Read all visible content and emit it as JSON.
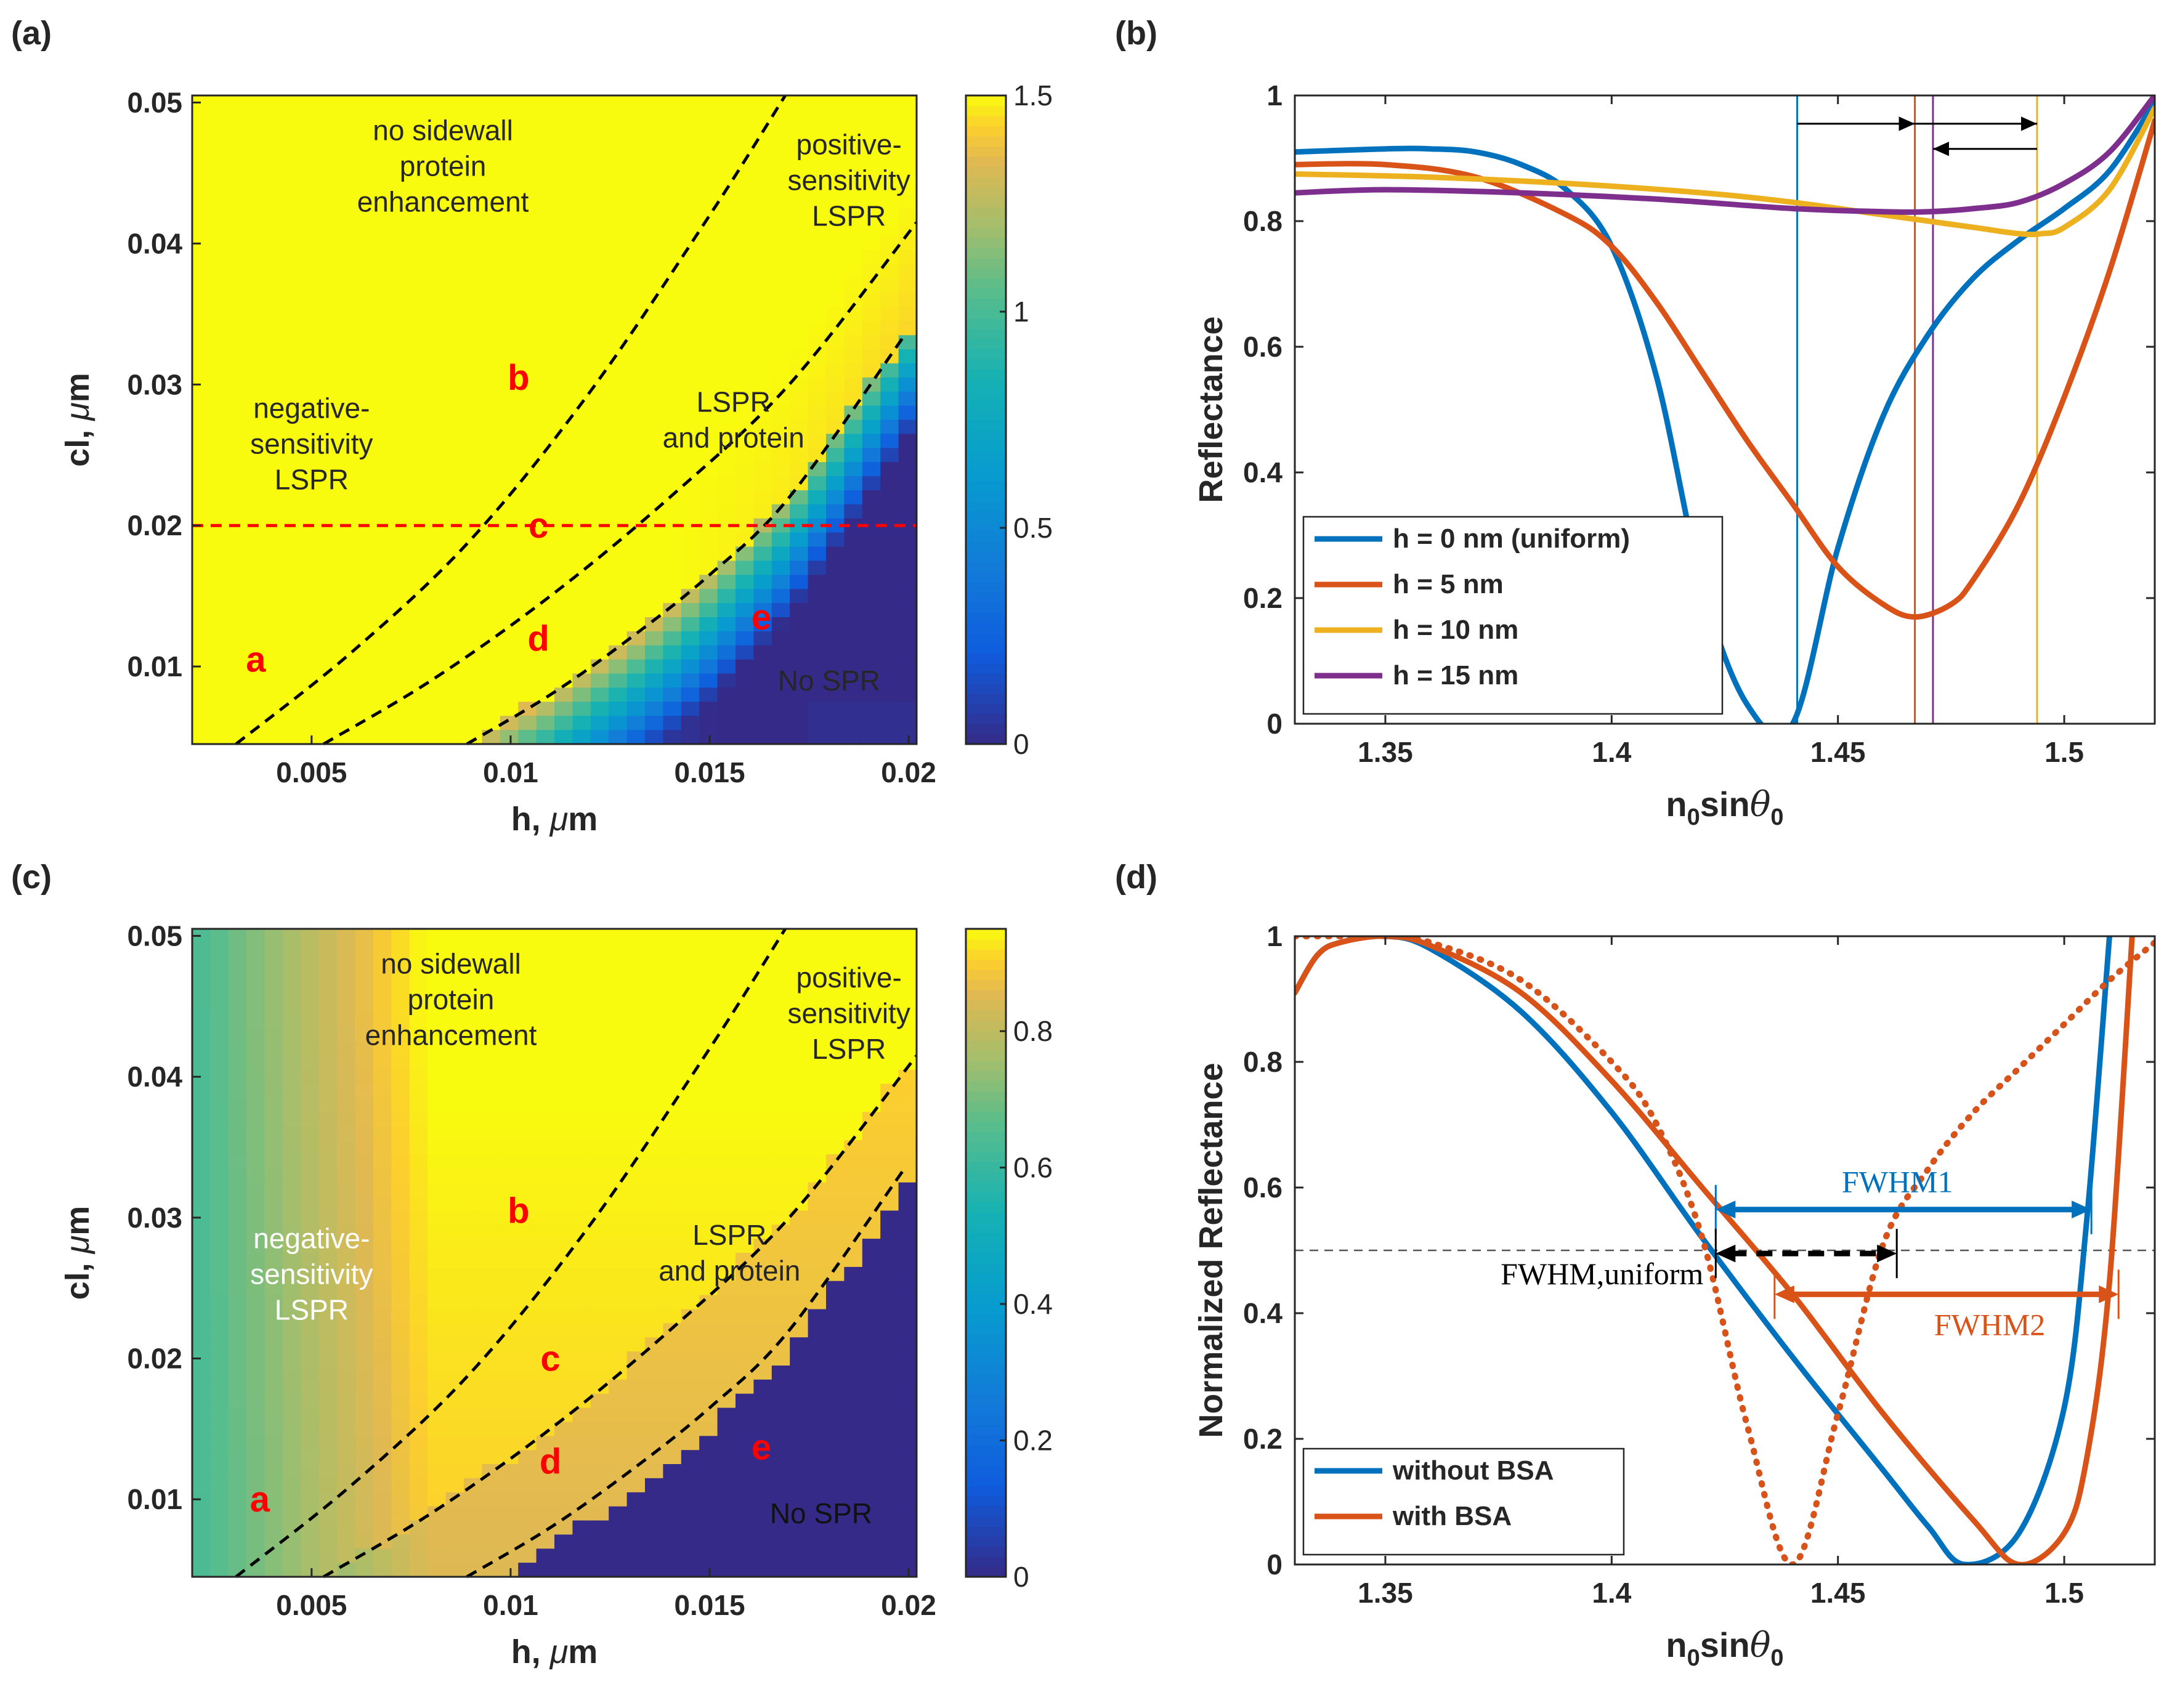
{
  "panels": {
    "a": {
      "label": "(a)"
    },
    "b": {
      "label": "(b)"
    },
    "c": {
      "label": "(c)"
    },
    "d": {
      "label": "(d)"
    }
  },
  "chart_data": [
    {
      "id": "a",
      "type": "heatmap",
      "xlabel": "h, μm",
      "ylabel": "cl, μm",
      "xlim": [
        0.002,
        0.0202
      ],
      "ylim": [
        0.0045,
        0.0505
      ],
      "xticks": [
        "0.005",
        "0.01",
        "0.015",
        "0.02"
      ],
      "xtick_values": [
        0.005,
        0.01,
        0.015,
        0.02
      ],
      "yticks": [
        "0.01",
        "0.02",
        "0.03",
        "0.04",
        "0.05"
      ],
      "ytick_values": [
        0.01,
        0.02,
        0.03,
        0.04,
        0.05
      ],
      "colorbar": {
        "ticks": [
          "0",
          "0.5",
          "1",
          "1.5"
        ],
        "tick_values": [
          0,
          0.5,
          1,
          1.5
        ],
        "range": [
          0,
          1.5
        ],
        "colormap": "parula"
      },
      "region_labels": [
        {
          "text": "a",
          "h": 0.0036,
          "cl": 0.0105,
          "color": "#ff0000"
        },
        {
          "text": "b",
          "h": 0.0102,
          "cl": 0.0305,
          "color": "#ff0000"
        },
        {
          "text": "c",
          "h": 0.0107,
          "cl": 0.02,
          "color": "#ff0000"
        },
        {
          "text": "d",
          "h": 0.0107,
          "cl": 0.012,
          "color": "#ff0000"
        },
        {
          "text": "e",
          "h": 0.0163,
          "cl": 0.0135,
          "color": "#ff0000"
        }
      ],
      "annotations": [
        {
          "lines": [
            "no sidewall",
            "protein",
            "enhancement"
          ],
          "h": 0.0083,
          "cl": 0.0455
        },
        {
          "lines": [
            "positive-",
            "sensitivity",
            "LSPR"
          ],
          "h": 0.0185,
          "cl": 0.0445
        },
        {
          "lines": [
            "negative-",
            "sensitivity",
            "LSPR"
          ],
          "h": 0.005,
          "cl": 0.0258
        },
        {
          "lines": [
            "LSPR",
            "and protein"
          ],
          "h": 0.0156,
          "cl": 0.0275
        },
        {
          "lines": [
            "No SPR"
          ],
          "h": 0.018,
          "cl": 0.009
        }
      ],
      "boundary_curves": [
        {
          "style": "dashed",
          "color": "#000000",
          "points": [
            [
              0.0031,
              0.0045
            ],
            [
              0.006,
              0.011
            ],
            [
              0.009,
              0.019
            ],
            [
              0.012,
              0.0295
            ],
            [
              0.015,
              0.042
            ],
            [
              0.0169,
              0.0505
            ]
          ]
        },
        {
          "style": "dashed",
          "color": "#000000",
          "points": [
            [
              0.0053,
              0.0045
            ],
            [
              0.008,
              0.009
            ],
            [
              0.011,
              0.015
            ],
            [
              0.014,
              0.022
            ],
            [
              0.017,
              0.03
            ],
            [
              0.0202,
              0.0415
            ]
          ]
        },
        {
          "style": "dashed",
          "color": "#000000",
          "points": [
            [
              0.0089,
              0.0045
            ],
            [
              0.011,
              0.008
            ],
            [
              0.013,
              0.012
            ],
            [
              0.015,
              0.0165
            ],
            [
              0.017,
              0.022
            ],
            [
              0.0199,
              0.0335
            ]
          ]
        },
        {
          "style": "dashed",
          "color": "#ff0000",
          "points": [
            [
              0.002,
              0.02
            ],
            [
              0.0202,
              0.02
            ]
          ]
        }
      ]
    },
    {
      "id": "b",
      "type": "line",
      "xlabel": "n0sinθ0",
      "ylabel": "Reflectance",
      "xlim": [
        1.33,
        1.52
      ],
      "ylim": [
        0,
        1
      ],
      "xticks": [
        "1.35",
        "1.4",
        "1.45",
        "1.5"
      ],
      "xtick_values": [
        1.35,
        1.4,
        1.45,
        1.5
      ],
      "yticks": [
        "0",
        "0.2",
        "0.4",
        "0.6",
        "0.8",
        "1"
      ],
      "ytick_values": [
        0,
        0.2,
        0.4,
        0.6,
        0.8,
        1
      ],
      "legend_position": "bottom-left",
      "series": [
        {
          "name": "h = 0 nm (uniform)",
          "color": "#0072bd",
          "style": "solid",
          "x": [
            1.33,
            1.35,
            1.36,
            1.37,
            1.38,
            1.39,
            1.4,
            1.41,
            1.42,
            1.43,
            1.44,
            1.45,
            1.46,
            1.47,
            1.48,
            1.49,
            1.5,
            1.51,
            1.52
          ],
          "y": [
            0.91,
            0.915,
            0.915,
            0.91,
            0.89,
            0.85,
            0.76,
            0.55,
            0.22,
            0.03,
            0.0,
            0.28,
            0.49,
            0.62,
            0.71,
            0.77,
            0.82,
            0.88,
            0.99
          ]
        },
        {
          "name": "h = 5 nm",
          "color": "#d95319",
          "style": "solid",
          "x": [
            1.33,
            1.35,
            1.37,
            1.39,
            1.4,
            1.41,
            1.42,
            1.43,
            1.44,
            1.45,
            1.46,
            1.467,
            1.475,
            1.48,
            1.49,
            1.5,
            1.51,
            1.52
          ],
          "y": [
            0.89,
            0.89,
            0.87,
            0.81,
            0.76,
            0.67,
            0.56,
            0.45,
            0.35,
            0.25,
            0.19,
            0.17,
            0.19,
            0.23,
            0.35,
            0.52,
            0.72,
            0.96
          ]
        },
        {
          "name": "h = 10 nm",
          "color": "#edb120",
          "style": "solid",
          "x": [
            1.33,
            1.36,
            1.39,
            1.42,
            1.44,
            1.46,
            1.48,
            1.49,
            1.495,
            1.5,
            1.51,
            1.52
          ],
          "y": [
            0.875,
            0.87,
            0.86,
            0.845,
            0.83,
            0.81,
            0.79,
            0.78,
            0.78,
            0.79,
            0.85,
            0.98
          ]
        },
        {
          "name": "h = 15 nm",
          "color": "#7e2f8e",
          "style": "solid",
          "x": [
            1.33,
            1.35,
            1.38,
            1.41,
            1.44,
            1.46,
            1.47,
            1.48,
            1.49,
            1.5,
            1.51,
            1.52
          ],
          "y": [
            0.845,
            0.85,
            0.845,
            0.835,
            0.82,
            0.815,
            0.815,
            0.82,
            0.83,
            0.86,
            0.91,
            1.0
          ]
        }
      ],
      "vertical_lines": [
        {
          "x": 1.441,
          "color": "#0072bd"
        },
        {
          "x": 1.467,
          "color": "#d95319"
        },
        {
          "x": 1.471,
          "color": "#7e2f8e"
        },
        {
          "x": 1.494,
          "color": "#edb120"
        }
      ],
      "arrows": [
        {
          "from": [
            1.441,
            0.955
          ],
          "to": [
            1.467,
            0.955
          ]
        },
        {
          "from": [
            1.467,
            0.955
          ],
          "to": [
            1.494,
            0.955
          ]
        },
        {
          "from": [
            1.494,
            0.915
          ],
          "to": [
            1.471,
            0.915
          ]
        }
      ]
    },
    {
      "id": "c",
      "type": "heatmap",
      "xlabel": "h, μm",
      "ylabel": "cl, μm",
      "xlim": [
        0.002,
        0.0202
      ],
      "ylim": [
        0.0045,
        0.0505
      ],
      "xticks": [
        "0.005",
        "0.01",
        "0.015",
        "0.02"
      ],
      "xtick_values": [
        0.005,
        0.01,
        0.015,
        0.02
      ],
      "yticks": [
        "0.01",
        "0.02",
        "0.03",
        "0.04",
        "0.05"
      ],
      "ytick_values": [
        0.01,
        0.02,
        0.03,
        0.04,
        0.05
      ],
      "colorbar": {
        "ticks": [
          "0",
          "0.2",
          "0.4",
          "0.6",
          "0.8"
        ],
        "tick_values": [
          0,
          0.2,
          0.4,
          0.6,
          0.8
        ],
        "range": [
          0,
          0.95
        ],
        "colormap": "parula"
      },
      "region_labels": [
        {
          "text": "a",
          "h": 0.0037,
          "cl": 0.01,
          "color": "#ff0000"
        },
        {
          "text": "b",
          "h": 0.0102,
          "cl": 0.0305,
          "color": "#ff0000"
        },
        {
          "text": "c",
          "h": 0.011,
          "cl": 0.02,
          "color": "#ff0000"
        },
        {
          "text": "d",
          "h": 0.011,
          "cl": 0.0127,
          "color": "#ff0000"
        },
        {
          "text": "e",
          "h": 0.0163,
          "cl": 0.0137,
          "color": "#ff0000"
        }
      ],
      "annotations": [
        {
          "lines": [
            "no sidewall",
            "protein",
            "enhancement"
          ],
          "h": 0.0085,
          "cl": 0.0455,
          "color": "#262626"
        },
        {
          "lines": [
            "positive-",
            "sensitivity",
            "LSPR"
          ],
          "h": 0.0185,
          "cl": 0.0445,
          "color": "#262626"
        },
        {
          "lines": [
            "negative-",
            "sensitivity",
            "LSPR"
          ],
          "h": 0.005,
          "cl": 0.026,
          "color": "#ffffff"
        },
        {
          "lines": [
            "LSPR",
            "and protein"
          ],
          "h": 0.0155,
          "cl": 0.0275,
          "color": "#262626"
        },
        {
          "lines": [
            "No SPR"
          ],
          "h": 0.0178,
          "cl": 0.009,
          "color": "#111111"
        }
      ],
      "boundary_curves": [
        {
          "style": "dashed",
          "color": "#000000",
          "points": [
            [
              0.0031,
              0.0045
            ],
            [
              0.006,
              0.011
            ],
            [
              0.009,
              0.019
            ],
            [
              0.012,
              0.0295
            ],
            [
              0.015,
              0.042
            ],
            [
              0.0169,
              0.0505
            ]
          ]
        },
        {
          "style": "dashed",
          "color": "#000000",
          "points": [
            [
              0.0053,
              0.0045
            ],
            [
              0.008,
              0.009
            ],
            [
              0.011,
              0.015
            ],
            [
              0.014,
              0.022
            ],
            [
              0.017,
              0.03
            ],
            [
              0.0202,
              0.0415
            ]
          ]
        },
        {
          "style": "dashed",
          "color": "#000000",
          "points": [
            [
              0.0089,
              0.0045
            ],
            [
              0.011,
              0.008
            ],
            [
              0.013,
              0.012
            ],
            [
              0.015,
              0.0165
            ],
            [
              0.017,
              0.022
            ],
            [
              0.0199,
              0.0335
            ]
          ]
        }
      ]
    },
    {
      "id": "d",
      "type": "line",
      "xlabel": "n0sinθ0",
      "ylabel": "Normalized Reflectance",
      "xlim": [
        1.33,
        1.52
      ],
      "ylim": [
        0,
        1
      ],
      "xticks": [
        "1.35",
        "1.4",
        "1.45",
        "1.5"
      ],
      "xtick_values": [
        1.35,
        1.4,
        1.45,
        1.5
      ],
      "yticks": [
        "0",
        "0.2",
        "0.4",
        "0.6",
        "0.8",
        "1"
      ],
      "ytick_values": [
        0,
        0.2,
        0.4,
        0.6,
        0.8,
        1
      ],
      "legend_position": "bottom-left",
      "series": [
        {
          "name": "without BSA",
          "color": "#0072bd",
          "style": "solid",
          "x": [
            1.33,
            1.335,
            1.34,
            1.35,
            1.36,
            1.38,
            1.4,
            1.42,
            1.44,
            1.46,
            1.47,
            1.478,
            1.49,
            1.5,
            1.505,
            1.51
          ],
          "y": [
            0.91,
            0.97,
            0.99,
            1.0,
            0.98,
            0.88,
            0.72,
            0.52,
            0.33,
            0.15,
            0.06,
            0.0,
            0.05,
            0.25,
            0.55,
            1.0
          ]
        },
        {
          "name": "with BSA",
          "color": "#d95319",
          "style": "solid",
          "x": [
            1.33,
            1.335,
            1.34,
            1.35,
            1.36,
            1.38,
            1.4,
            1.42,
            1.44,
            1.46,
            1.48,
            1.49,
            1.5,
            1.505,
            1.51,
            1.515
          ],
          "y": [
            0.91,
            0.97,
            0.99,
            1.0,
            0.985,
            0.91,
            0.77,
            0.6,
            0.43,
            0.24,
            0.07,
            0.0,
            0.05,
            0.17,
            0.45,
            1.0
          ]
        },
        {
          "name": "",
          "color": "#0072bd",
          "style": "dotted",
          "x": [
            1.33,
            1.34,
            1.35,
            1.36,
            1.38,
            1.4,
            1.41,
            1.42,
            1.43,
            1.44,
            1.45,
            1.46,
            1.47,
            1.48,
            1.49,
            1.5,
            1.51,
            1.52
          ],
          "y": [
            1.0,
            1.0,
            1.0,
            0.99,
            0.93,
            0.8,
            0.7,
            0.52,
            0.22,
            0.0,
            0.24,
            0.51,
            0.63,
            0.72,
            0.79,
            0.86,
            0.93,
            0.99
          ]
        },
        {
          "name": "",
          "color": "#d95319",
          "style": "dotted",
          "x": [
            1.33,
            1.34,
            1.35,
            1.36,
            1.38,
            1.4,
            1.41,
            1.42,
            1.43,
            1.44,
            1.45,
            1.46,
            1.47,
            1.48,
            1.49,
            1.5,
            1.51,
            1.52
          ],
          "y": [
            1.0,
            1.0,
            1.0,
            0.99,
            0.93,
            0.8,
            0.7,
            0.52,
            0.22,
            0.0,
            0.24,
            0.51,
            0.63,
            0.72,
            0.79,
            0.86,
            0.93,
            0.99
          ]
        }
      ],
      "half_max_line": 0.5,
      "widths": [
        {
          "label": "FWHM1",
          "x1": 1.423,
          "x2": 1.506,
          "y": 0.565,
          "color": "#0072bd",
          "style": "solid"
        },
        {
          "label": "FWHM,uniform",
          "x1": 1.423,
          "x2": 1.463,
          "y": 0.495,
          "color": "#000000",
          "style": "dashed"
        },
        {
          "label": "FWHM2",
          "x1": 1.436,
          "x2": 1.512,
          "y": 0.43,
          "color": "#d95319",
          "style": "solid"
        }
      ]
    }
  ]
}
